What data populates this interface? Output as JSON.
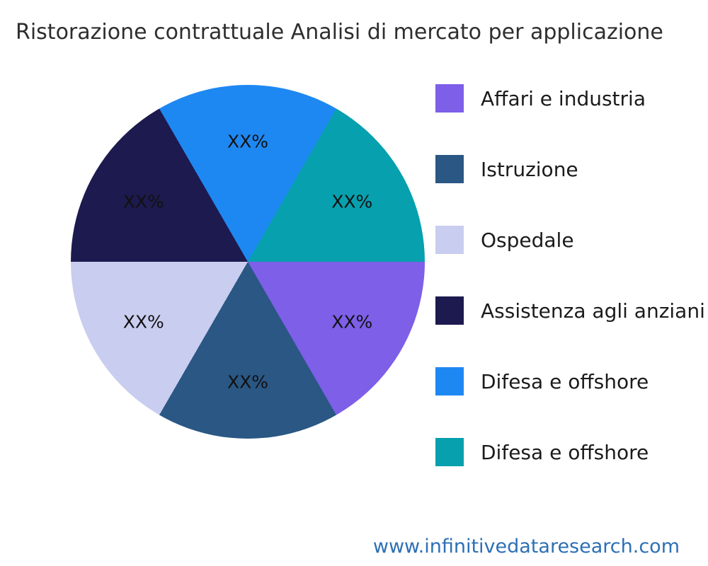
{
  "title": "Ristorazione contrattuale Analisi di mercato per applicazione",
  "footer": {
    "url": "www.infinitivedataresearch.com"
  },
  "chart_data": {
    "type": "pie",
    "title": "Ristorazione contrattuale Analisi di mercato per applicazione",
    "legend_position": "right",
    "slices": [
      {
        "label": "Affari e industria",
        "value": "XX%",
        "color": "#7d5fe8"
      },
      {
        "label": "Istruzione",
        "value": "XX%",
        "color": "#2a5784"
      },
      {
        "label": "Ospedale",
        "value": "XX%",
        "color": "#c9cdef"
      },
      {
        "label": "Assistenza agli anziani",
        "value": "XX%",
        "color": "#1d1a4f"
      },
      {
        "label": "Difesa e offshore",
        "value": "XX%",
        "color": "#1e88f2"
      },
      {
        "label": "Difesa e offshore",
        "value": "XX%",
        "color": "#06a0ae"
      }
    ],
    "pie": {
      "start_angle_deg": -30,
      "slice_sweep_deg": 60,
      "clockwise_order": [
        4,
        5,
        0,
        1,
        2,
        3
      ]
    }
  }
}
